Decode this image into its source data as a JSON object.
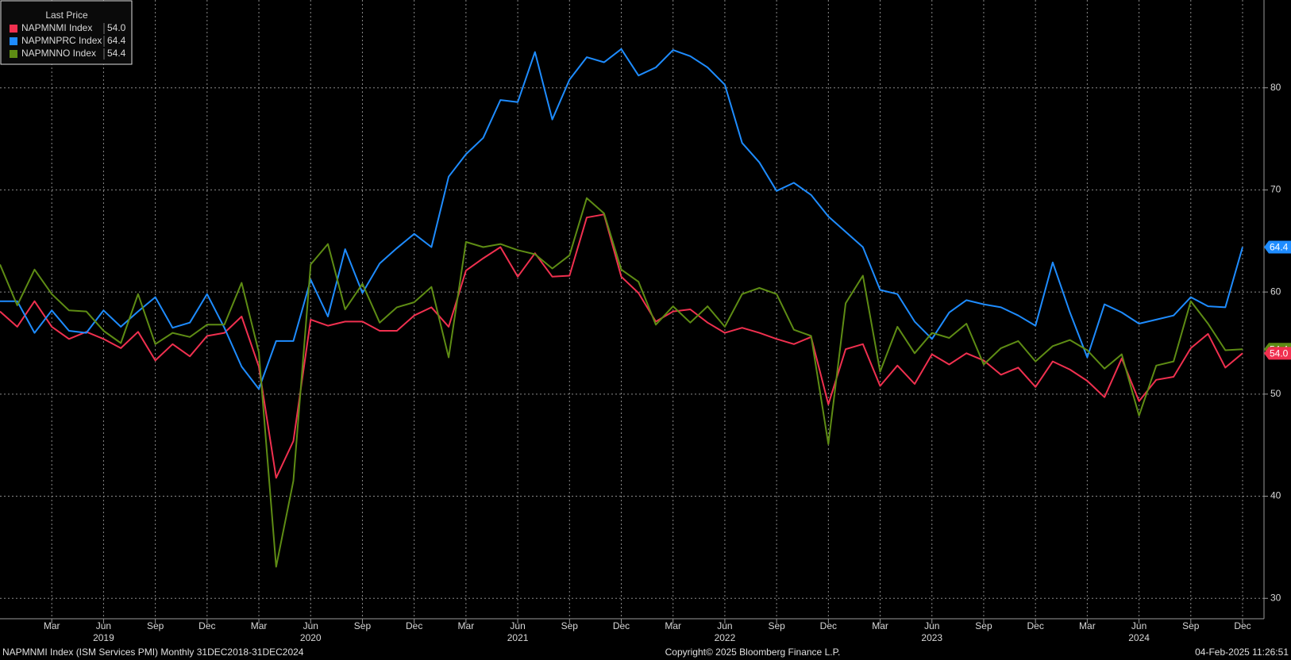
{
  "chart_data": {
    "type": "line",
    "legend_title": "Last Price",
    "categories": [
      "2018-12",
      "2019-01",
      "2019-02",
      "2019-03",
      "2019-04",
      "2019-05",
      "2019-06",
      "2019-07",
      "2019-08",
      "2019-09",
      "2019-10",
      "2019-11",
      "2019-12",
      "2020-01",
      "2020-02",
      "2020-03",
      "2020-04",
      "2020-05",
      "2020-06",
      "2020-07",
      "2020-08",
      "2020-09",
      "2020-10",
      "2020-11",
      "2020-12",
      "2021-01",
      "2021-02",
      "2021-03",
      "2021-04",
      "2021-05",
      "2021-06",
      "2021-07",
      "2021-08",
      "2021-09",
      "2021-10",
      "2021-11",
      "2021-12",
      "2022-01",
      "2022-02",
      "2022-03",
      "2022-04",
      "2022-05",
      "2022-06",
      "2022-07",
      "2022-08",
      "2022-09",
      "2022-10",
      "2022-11",
      "2022-12",
      "2023-01",
      "2023-02",
      "2023-03",
      "2023-04",
      "2023-05",
      "2023-06",
      "2023-07",
      "2023-08",
      "2023-09",
      "2023-10",
      "2023-11",
      "2023-12",
      "2024-01",
      "2024-02",
      "2024-03",
      "2024-04",
      "2024-05",
      "2024-06",
      "2024-07",
      "2024-08",
      "2024-09",
      "2024-10",
      "2024-11",
      "2024-12"
    ],
    "series": [
      {
        "name": "NAPMNMI Index",
        "color": "#f0304f",
        "last_label": "54.0",
        "values": [
          58.1,
          56.6,
          59.1,
          56.6,
          55.4,
          56.1,
          55.4,
          54.5,
          56.1,
          53.3,
          54.9,
          53.7,
          55.7,
          56.0,
          57.6,
          52.7,
          41.8,
          45.4,
          57.3,
          56.7,
          57.1,
          57.1,
          56.2,
          56.2,
          57.7,
          58.5,
          56.6,
          62.1,
          63.3,
          64.4,
          61.5,
          63.8,
          61.5,
          61.6,
          67.3,
          67.6,
          61.5,
          59.9,
          57.1,
          58.1,
          58.3,
          57.0,
          56.0,
          56.5,
          56.0,
          55.4,
          54.9,
          55.6,
          49.0,
          54.4,
          54.9,
          50.8,
          52.8,
          51.0,
          53.9,
          52.9,
          54.0,
          53.3,
          51.9,
          52.6,
          50.7,
          53.2,
          52.4,
          51.3,
          49.7,
          53.5,
          49.3,
          51.4,
          51.7,
          54.5,
          55.9,
          52.6,
          54.0
        ]
      },
      {
        "name": "NAPMNPRC Index",
        "color": "#1e8cff",
        "last_label": "64.4",
        "values": [
          59.1,
          59.1,
          56.0,
          58.2,
          56.2,
          56.0,
          58.2,
          56.6,
          58.1,
          59.5,
          56.5,
          57.0,
          59.8,
          56.5,
          52.7,
          50.5,
          55.2,
          55.2,
          61.2,
          57.6,
          64.2,
          59.9,
          62.8,
          64.3,
          65.7,
          64.4,
          71.3,
          73.5,
          75.1,
          78.8,
          78.6,
          83.5,
          76.9,
          80.8,
          83.0,
          82.5,
          83.8,
          81.2,
          82.0,
          83.7,
          83.1,
          82.0,
          80.3,
          74.6,
          72.7,
          69.9,
          70.7,
          69.5,
          67.4,
          65.9,
          64.4,
          60.2,
          59.8,
          57.1,
          55.4,
          58.0,
          59.2,
          58.8,
          58.5,
          57.7,
          56.7,
          62.9,
          58.0,
          53.6,
          58.8,
          58.0,
          56.9,
          57.3,
          57.7,
          59.5,
          58.6,
          58.5,
          64.4
        ]
      },
      {
        "name": "NAPMNNO Index",
        "color": "#5e8c14",
        "last_label": "54.4",
        "values": [
          62.7,
          58.7,
          62.2,
          59.8,
          58.2,
          58.1,
          56.2,
          55.0,
          59.8,
          54.9,
          56.0,
          55.6,
          56.8,
          56.8,
          60.9,
          54.1,
          33.1,
          41.5,
          62.7,
          64.7,
          58.3,
          60.8,
          57.0,
          58.5,
          59.0,
          60.5,
          53.6,
          64.9,
          64.4,
          64.7,
          64.1,
          63.7,
          62.3,
          63.6,
          69.2,
          67.7,
          62.2,
          61.0,
          56.8,
          58.6,
          57.0,
          58.6,
          56.6,
          59.8,
          60.4,
          59.8,
          56.3,
          55.7,
          45.1,
          58.9,
          61.6,
          52.2,
          56.6,
          54.0,
          56.0,
          55.5,
          56.9,
          52.9,
          54.5,
          55.2,
          53.2,
          54.7,
          55.3,
          54.3,
          52.5,
          53.9,
          47.9,
          52.8,
          53.2,
          59.1,
          56.9,
          54.3,
          54.4
        ]
      }
    ],
    "ylim": [
      28,
      88.6
    ],
    "yticks": [
      30,
      40,
      50,
      60,
      70,
      80
    ],
    "grid": true,
    "xticks": [
      {
        "value": "2019-03",
        "label": "Mar"
      },
      {
        "value": "2019-06",
        "label": "Jun"
      },
      {
        "value": "2019-09",
        "label": "Sep"
      },
      {
        "value": "2019-12",
        "label": "Dec"
      },
      {
        "value": "2020-03",
        "label": "Mar"
      },
      {
        "value": "2020-06",
        "label": "Jun"
      },
      {
        "value": "2020-09",
        "label": "Sep"
      },
      {
        "value": "2020-12",
        "label": "Dec"
      },
      {
        "value": "2021-03",
        "label": "Mar"
      },
      {
        "value": "2021-06",
        "label": "Jun"
      },
      {
        "value": "2021-09",
        "label": "Sep"
      },
      {
        "value": "2021-12",
        "label": "Dec"
      },
      {
        "value": "2022-03",
        "label": "Mar"
      },
      {
        "value": "2022-06",
        "label": "Jun"
      },
      {
        "value": "2022-09",
        "label": "Sep"
      },
      {
        "value": "2022-12",
        "label": "Dec"
      },
      {
        "value": "2023-03",
        "label": "Mar"
      },
      {
        "value": "2023-06",
        "label": "Jun"
      },
      {
        "value": "2023-09",
        "label": "Sep"
      },
      {
        "value": "2023-12",
        "label": "Dec"
      },
      {
        "value": "2024-03",
        "label": "Mar"
      },
      {
        "value": "2024-06",
        "label": "Jun"
      },
      {
        "value": "2024-09",
        "label": "Sep"
      },
      {
        "value": "2024-12",
        "label": "Dec"
      }
    ],
    "year_labels": [
      {
        "value": "2019-06",
        "label": "2019"
      },
      {
        "value": "2020-06",
        "label": "2020"
      },
      {
        "value": "2021-06",
        "label": "2021"
      },
      {
        "value": "2022-06",
        "label": "2022"
      },
      {
        "value": "2023-06",
        "label": "2023"
      },
      {
        "value": "2024-06",
        "label": "2024"
      }
    ],
    "footer": {
      "left": "NAPMNMI Index (ISM Services PMI)  Monthly 31DEC2018-31DEC2024",
      "center": "Copyright© 2025 Bloomberg Finance L.P.",
      "right": "04-Feb-2025 11:26:51"
    }
  }
}
